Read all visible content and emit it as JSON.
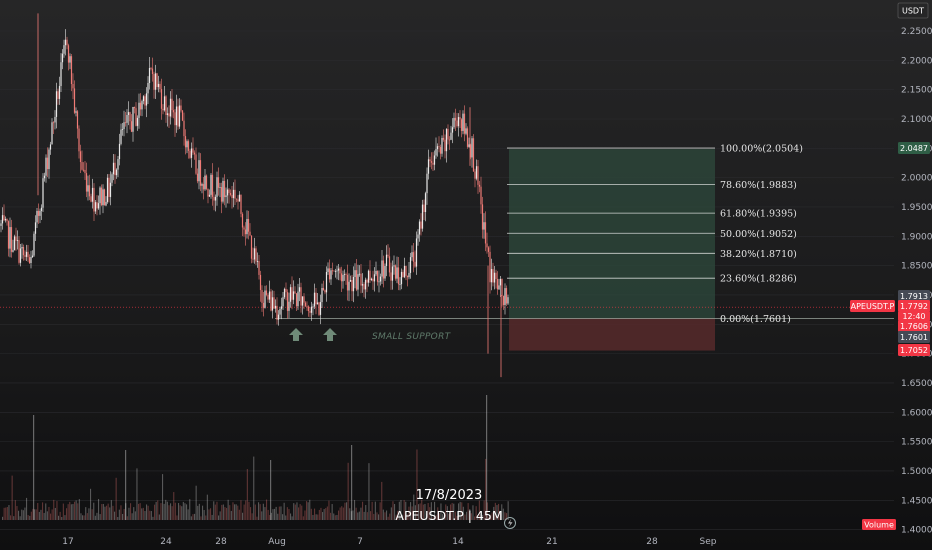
{
  "header": {
    "currency_badge": "USDT"
  },
  "watermark": {
    "date": "17/8/2023",
    "symbol": "APEUSDT.P",
    "interval": "45M",
    "separator": "|"
  },
  "annotations": {
    "support_label": "SMALL SUPPORT",
    "arrow_icon": "up-arrow-icon",
    "lightning_icon": "lightning-icon"
  },
  "price_tags": {
    "symbol_tag": "APEUSDT.P",
    "current_price": "1.7792",
    "countdown": "12:40",
    "target_price": "2.0487",
    "high_line": "1.7913",
    "red_price": "1.7606",
    "entry_price": "1.7601",
    "stop_price": "1.7052",
    "volume_label": "Volume"
  },
  "colors": {
    "up": "#e8e8e8",
    "down": "#f07b76",
    "profit_zone": "#2e4a3c",
    "loss_zone": "#5a2a2c",
    "tag_red": "#f23645",
    "tag_green": "#2f5e46",
    "tag_gray": "#454a55"
  },
  "chart_data": {
    "type": "candlestick",
    "symbol": "APEUSDT.P",
    "interval": "45M",
    "y_ticks": [
      "2.2500",
      "2.2000",
      "2.1500",
      "2.1000",
      "2.0500",
      "2.0000",
      "1.9500",
      "1.9000",
      "1.8500",
      "1.8000",
      "1.7500",
      "1.7000",
      "1.6500",
      "1.6000",
      "1.5500",
      "1.5000",
      "1.4500",
      "1.4000"
    ],
    "x_ticks": [
      "17",
      "24",
      "28",
      "Aug",
      "7",
      "14",
      "21",
      "28",
      "Sep"
    ],
    "ylim": [
      1.38,
      2.275
    ],
    "price_path": [
      {
        "t": "Jul 15",
        "p": 1.92
      },
      {
        "t": "Jul 16",
        "p": 1.85
      },
      {
        "t": "Jul 17",
        "p": 2.24
      },
      {
        "t": "Jul 18",
        "p": 2.02
      },
      {
        "t": "Jul 19",
        "p": 1.96
      },
      {
        "t": "Jul 20",
        "p": 1.98
      },
      {
        "t": "Jul 21",
        "p": 2.08
      },
      {
        "t": "Jul 22",
        "p": 2.11
      },
      {
        "t": "Jul 23",
        "p": 2.18
      },
      {
        "t": "Jul 24",
        "p": 2.12
      },
      {
        "t": "Jul 25",
        "p": 2.1
      },
      {
        "t": "Jul 26",
        "p": 2.02
      },
      {
        "t": "Jul 27",
        "p": 1.99
      },
      {
        "t": "Jul 28",
        "p": 1.975
      },
      {
        "t": "Jul 29",
        "p": 1.975
      },
      {
        "t": "Jul 30",
        "p": 1.9
      },
      {
        "t": "Jul 31",
        "p": 1.8
      },
      {
        "t": "Aug 1",
        "p": 1.78
      },
      {
        "t": "Aug 2",
        "p": 1.8
      },
      {
        "t": "Aug 3",
        "p": 1.79
      },
      {
        "t": "Aug 4",
        "p": 1.78
      },
      {
        "t": "Aug 5",
        "p": 1.85
      },
      {
        "t": "Aug 6",
        "p": 1.83
      },
      {
        "t": "Aug 7",
        "p": 1.82
      },
      {
        "t": "Aug 8",
        "p": 1.84
      },
      {
        "t": "Aug 9",
        "p": 1.85
      },
      {
        "t": "Aug 10",
        "p": 1.83
      },
      {
        "t": "Aug 11",
        "p": 1.87
      },
      {
        "t": "Aug 12",
        "p": 2.03
      },
      {
        "t": "Aug 13",
        "p": 2.05
      },
      {
        "t": "Aug 14",
        "p": 2.11
      },
      {
        "t": "Aug 15",
        "p": 2.05
      },
      {
        "t": "Aug 16",
        "p": 1.84
      },
      {
        "t": "Aug 17",
        "p": 1.78
      }
    ],
    "fibonacci": [
      {
        "label": "100.00%(2.0504)",
        "price": 2.0504
      },
      {
        "label": "78.60%(1.9883)",
        "price": 1.9883
      },
      {
        "label": "61.80%(1.9395)",
        "price": 1.9395
      },
      {
        "label": "50.00%(1.9052)",
        "price": 1.9052
      },
      {
        "label": "38.20%(1.8710)",
        "price": 1.871
      },
      {
        "label": "23.60%(1.8286)",
        "price": 1.8286
      },
      {
        "label": "0.00%(1.7601)",
        "price": 1.7601
      }
    ],
    "position": {
      "entry": 1.7601,
      "target": 2.0487,
      "stop": 1.7052
    },
    "support_level": 1.7601,
    "dotted_current_line": 1.7792
  }
}
